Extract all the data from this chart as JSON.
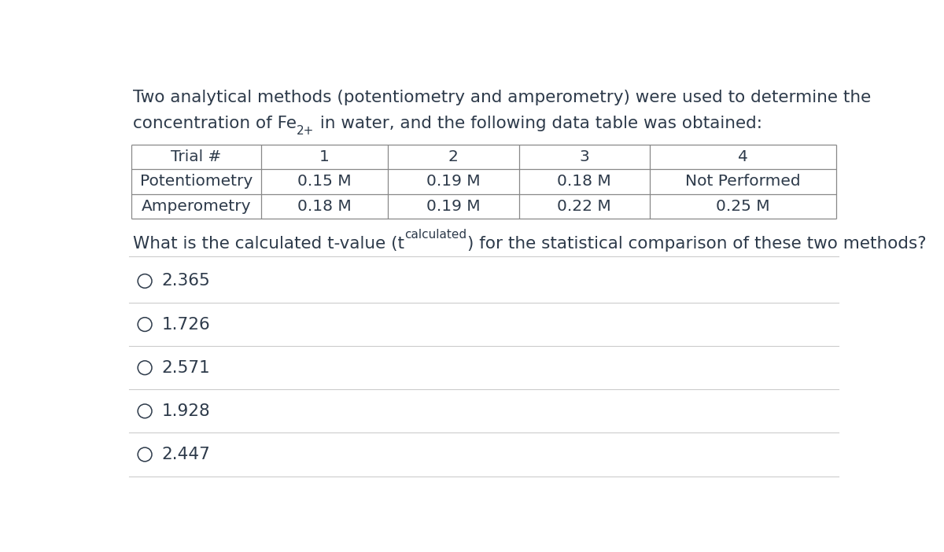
{
  "background_color": "#ffffff",
  "text_color": "#2d3a4a",
  "table_border_color": "#888888",
  "divider_color": "#cccccc",
  "intro_line1": "Two analytical methods (potentiometry and amperometry) were used to determine the",
  "intro_line2_pre": "concentration of Fe",
  "intro_line2_sup": "2+",
  "intro_line2_post": " in water, and the following data table was obtained:",
  "table_headers": [
    "Trial #",
    "1",
    "2",
    "3",
    "4"
  ],
  "table_rows": [
    [
      "Potentiometry",
      "0.15 M",
      "0.19 M",
      "0.18 M",
      "Not Performed"
    ],
    [
      "Amperometry",
      "0.18 M",
      "0.19 M",
      "0.22 M",
      "0.25 M"
    ]
  ],
  "q_pre": "What is the calculated t-value (t",
  "q_sub": "calculated",
  "q_post": ") for the statistical comparison of these two methods?",
  "options": [
    "2.365",
    "1.726",
    "2.571",
    "1.928",
    "2.447"
  ],
  "font_size_intro": 15.5,
  "font_size_table": 14.5,
  "font_size_question": 15.5,
  "font_size_options": 15.5,
  "font_size_super": 11,
  "font_size_sub": 11
}
